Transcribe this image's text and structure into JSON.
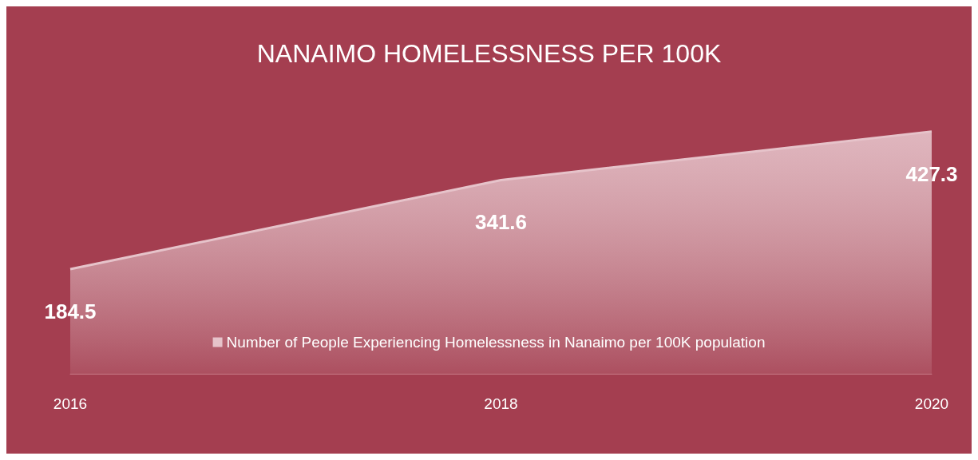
{
  "chart_data": {
    "type": "area",
    "title": "NANAIMO HOMELESSNESS PER 100K",
    "categories": [
      "2016",
      "2018",
      "2020"
    ],
    "series": [
      {
        "name": "Number of People Experiencing Homelessness in Nanaimo per 100K population",
        "color": "#e6c3ca",
        "values": [
          184.5,
          341.6,
          427.3
        ]
      }
    ],
    "data_labels": true,
    "legend": "bottom",
    "grid": false
  }
}
